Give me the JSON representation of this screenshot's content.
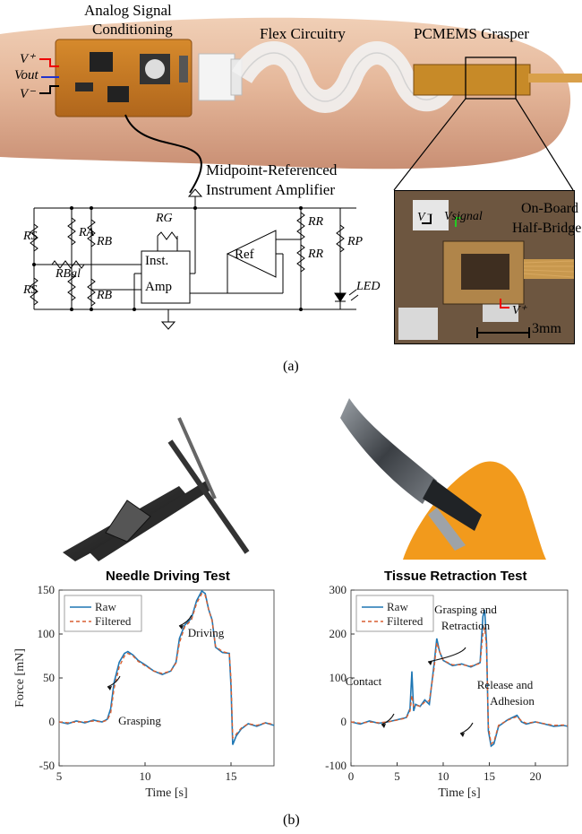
{
  "panel_a": {
    "labels": {
      "analog_signal": "Analog Signal",
      "conditioning": "Conditioning",
      "flex_circuitry": "Flex Circuitry",
      "pcmems_grasper": "PCMEMS Grasper",
      "midpoint_referenced": "Midpoint-Referenced",
      "instrument_amplifier": "Instrument Amplifier",
      "on_board": "On-Board",
      "half_bridge": "Half-Bridge",
      "scale": "3mm",
      "v_plus": "V⁺",
      "v_out": "Vout",
      "v_minus": "V⁻",
      "v_minus_inset": "V⁻",
      "v_signal": "Vsignal",
      "v_plus_inset": "V⁺"
    },
    "schematic": {
      "rs_top": "RS",
      "ra": "RA",
      "rb_top": "RB",
      "rg": "RG",
      "rbal": "RBal",
      "rs_bottom": "RS",
      "rb_bottom": "RB",
      "inst": "Inst.",
      "amp": "Amp",
      "ref": "Ref",
      "rr_top": "RR",
      "rr_bottom": "RR",
      "rp": "RP",
      "led": "LED"
    },
    "caption": "(a)"
  },
  "panel_b": {
    "caption": "(b)"
  },
  "chart_data": [
    {
      "type": "line",
      "title": "Needle Driving Test",
      "xlabel": "Time [s]",
      "ylabel": "Force [mN]",
      "xlim": [
        5,
        17.5
      ],
      "ylim": [
        -50,
        150
      ],
      "xticks": [
        5,
        10,
        15
      ],
      "yticks": [
        -50,
        0,
        50,
        100,
        150
      ],
      "legend": "top-left",
      "series": [
        {
          "name": "Raw",
          "color": "#1f77b4",
          "x": [
            5,
            5.5,
            6,
            6.5,
            7,
            7.5,
            7.8,
            8,
            8.2,
            8.5,
            8.8,
            9,
            9.3,
            9.6,
            10,
            10.5,
            11,
            11.5,
            11.8,
            12,
            12.3,
            12.7,
            13,
            13.3,
            13.5,
            13.7,
            13.9,
            14.1,
            14.5,
            14.9,
            15,
            15.1,
            15.3,
            15.6,
            16,
            16.5,
            17,
            17.5
          ],
          "values": [
            0,
            -2,
            1,
            -1,
            2,
            0,
            3,
            15,
            45,
            68,
            78,
            80,
            76,
            70,
            65,
            58,
            54,
            58,
            68,
            95,
            110,
            118,
            138,
            149,
            146,
            128,
            116,
            85,
            79,
            78,
            40,
            -26,
            -16,
            -8,
            -2,
            -5,
            -1,
            -4
          ]
        },
        {
          "name": "Filtered",
          "color": "#d95f30",
          "x": [
            5,
            5.5,
            6,
            6.5,
            7,
            7.5,
            7.8,
            8,
            8.2,
            8.5,
            8.8,
            9,
            9.3,
            9.6,
            10,
            10.5,
            11,
            11.5,
            11.8,
            12,
            12.3,
            12.7,
            13,
            13.3,
            13.5,
            13.7,
            13.9,
            14.1,
            14.5,
            14.9,
            15,
            15.1,
            15.3,
            15.6,
            16,
            16.5,
            17,
            17.5
          ],
          "values": [
            0,
            -1,
            0,
            0,
            1,
            0,
            2,
            10,
            38,
            63,
            75,
            78,
            75,
            69,
            64,
            58,
            55,
            58,
            67,
            90,
            108,
            116,
            135,
            146,
            144,
            128,
            115,
            86,
            80,
            78,
            48,
            -18,
            -14,
            -7,
            -2,
            -4,
            -1,
            -3
          ]
        }
      ],
      "annotations": [
        "Driving",
        "Grasping"
      ]
    },
    {
      "type": "line",
      "title": "Tissue Retraction Test",
      "xlabel": "Time [s]",
      "ylabel": "",
      "xlim": [
        0,
        23.5
      ],
      "ylim": [
        -100,
        300
      ],
      "xticks": [
        0,
        5,
        10,
        15,
        20
      ],
      "yticks": [
        -100,
        0,
        100,
        200,
        300
      ],
      "legend": "top-left",
      "series": [
        {
          "name": "Raw",
          "color": "#1f77b4",
          "x": [
            0,
            1,
            2,
            3,
            4,
            5,
            6,
            6.4,
            6.6,
            6.8,
            7,
            7.5,
            8,
            8.5,
            9,
            9.3,
            9.6,
            10,
            11,
            12,
            13,
            14,
            14.3,
            14.5,
            14.7,
            14.9,
            15.2,
            15.5,
            16,
            17,
            18,
            18.5,
            19,
            20,
            21,
            22,
            23,
            23.5
          ],
          "values": [
            0,
            -5,
            2,
            -3,
            0,
            5,
            10,
            30,
            115,
            25,
            40,
            35,
            50,
            40,
            130,
            190,
            160,
            140,
            128,
            132,
            125,
            135,
            240,
            255,
            180,
            -20,
            -55,
            -50,
            -10,
            5,
            15,
            0,
            -5,
            0,
            -5,
            -10,
            -8,
            -10
          ]
        },
        {
          "name": "Filtered",
          "color": "#d95f30",
          "x": [
            0,
            1,
            2,
            3,
            4,
            5,
            6,
            6.4,
            6.6,
            6.8,
            7,
            7.5,
            8,
            8.5,
            9,
            9.3,
            9.6,
            10,
            11,
            12,
            13,
            14,
            14.3,
            14.5,
            14.7,
            14.9,
            15.2,
            15.5,
            16,
            17,
            18,
            18.5,
            19,
            20,
            21,
            22,
            23,
            23.5
          ],
          "values": [
            0,
            -3,
            0,
            -2,
            0,
            4,
            9,
            25,
            60,
            35,
            38,
            36,
            45,
            48,
            120,
            180,
            160,
            140,
            130,
            130,
            127,
            133,
            200,
            215,
            170,
            -10,
            -50,
            -45,
            -8,
            4,
            12,
            2,
            -3,
            0,
            -4,
            -8,
            -7,
            -9
          ]
        }
      ],
      "annotations": [
        "Grasping and",
        "Retraction",
        "Contact",
        "Release and",
        "Adhesion"
      ]
    }
  ],
  "legend": {
    "raw": "Raw",
    "filtered": "Filtered"
  }
}
